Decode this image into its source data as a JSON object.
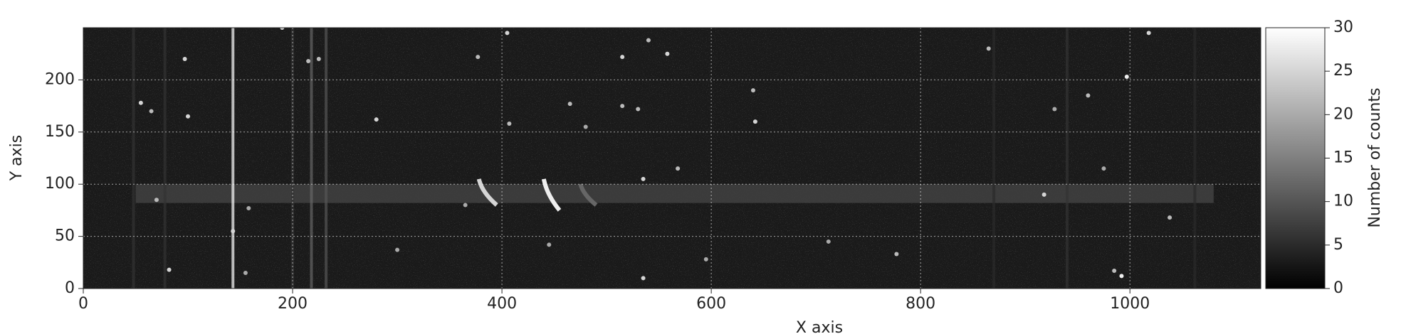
{
  "chart_data": {
    "type": "image",
    "xlabel": "X axis",
    "ylabel": "Y axis",
    "colorbar_label": "Number of counts",
    "cmap": "gray",
    "grid": true,
    "background": 3,
    "xlim": [
      0,
      1125
    ],
    "ylim": [
      0,
      250
    ],
    "xticks": [
      0,
      200,
      400,
      600,
      800,
      1000
    ],
    "yticks": [
      0,
      50,
      100,
      150,
      200
    ],
    "clim": [
      0,
      30
    ],
    "cticks": [
      0,
      5,
      10,
      15,
      20,
      25,
      30
    ],
    "band": {
      "x": [
        50,
        1080
      ],
      "y": [
        82,
        100
      ],
      "value": 8
    },
    "columns": {
      "x": [
        48,
        78,
        143,
        200,
        218,
        232,
        870,
        940,
        1062
      ],
      "values": [
        6,
        6,
        30,
        6,
        12,
        10,
        5,
        6,
        5
      ]
    },
    "streaks": [
      {
        "x": [
          378,
          395
        ],
        "y": [
          105,
          80
        ],
        "value": 25
      },
      {
        "x": [
          440,
          455
        ],
        "y": [
          105,
          75
        ],
        "value": 28
      },
      {
        "x": [
          475,
          490
        ],
        "y": [
          100,
          80
        ],
        "value": 12
      }
    ],
    "sources": {
      "x": [
        55,
        65,
        97,
        100,
        70,
        82,
        158,
        143,
        155,
        190,
        215,
        225,
        280,
        300,
        365,
        377,
        405,
        407,
        445,
        465,
        480,
        515,
        515,
        530,
        535,
        540,
        558,
        568,
        595,
        640,
        642,
        712,
        777,
        865,
        918,
        928,
        960,
        975,
        985,
        992,
        997,
        1018,
        1038,
        535
      ],
      "y": [
        178,
        170,
        220,
        165,
        85,
        18,
        77,
        55,
        15,
        250,
        218,
        220,
        162,
        37,
        80,
        222,
        245,
        158,
        42,
        177,
        155,
        222,
        175,
        172,
        105,
        238,
        225,
        115,
        28,
        190,
        160,
        45,
        33,
        230,
        90,
        172,
        185,
        115,
        17,
        12,
        203,
        245,
        68,
        10
      ],
      "values": [
        25,
        22,
        25,
        25,
        22,
        25,
        20,
        25,
        20,
        25,
        22,
        22,
        25,
        20,
        20,
        22,
        25,
        22,
        20,
        22,
        20,
        25,
        22,
        22,
        25,
        22,
        25,
        22,
        20,
        22,
        25,
        20,
        22,
        22,
        25,
        20,
        22,
        20,
        22,
        28,
        28,
        25,
        22,
        25
      ]
    }
  }
}
